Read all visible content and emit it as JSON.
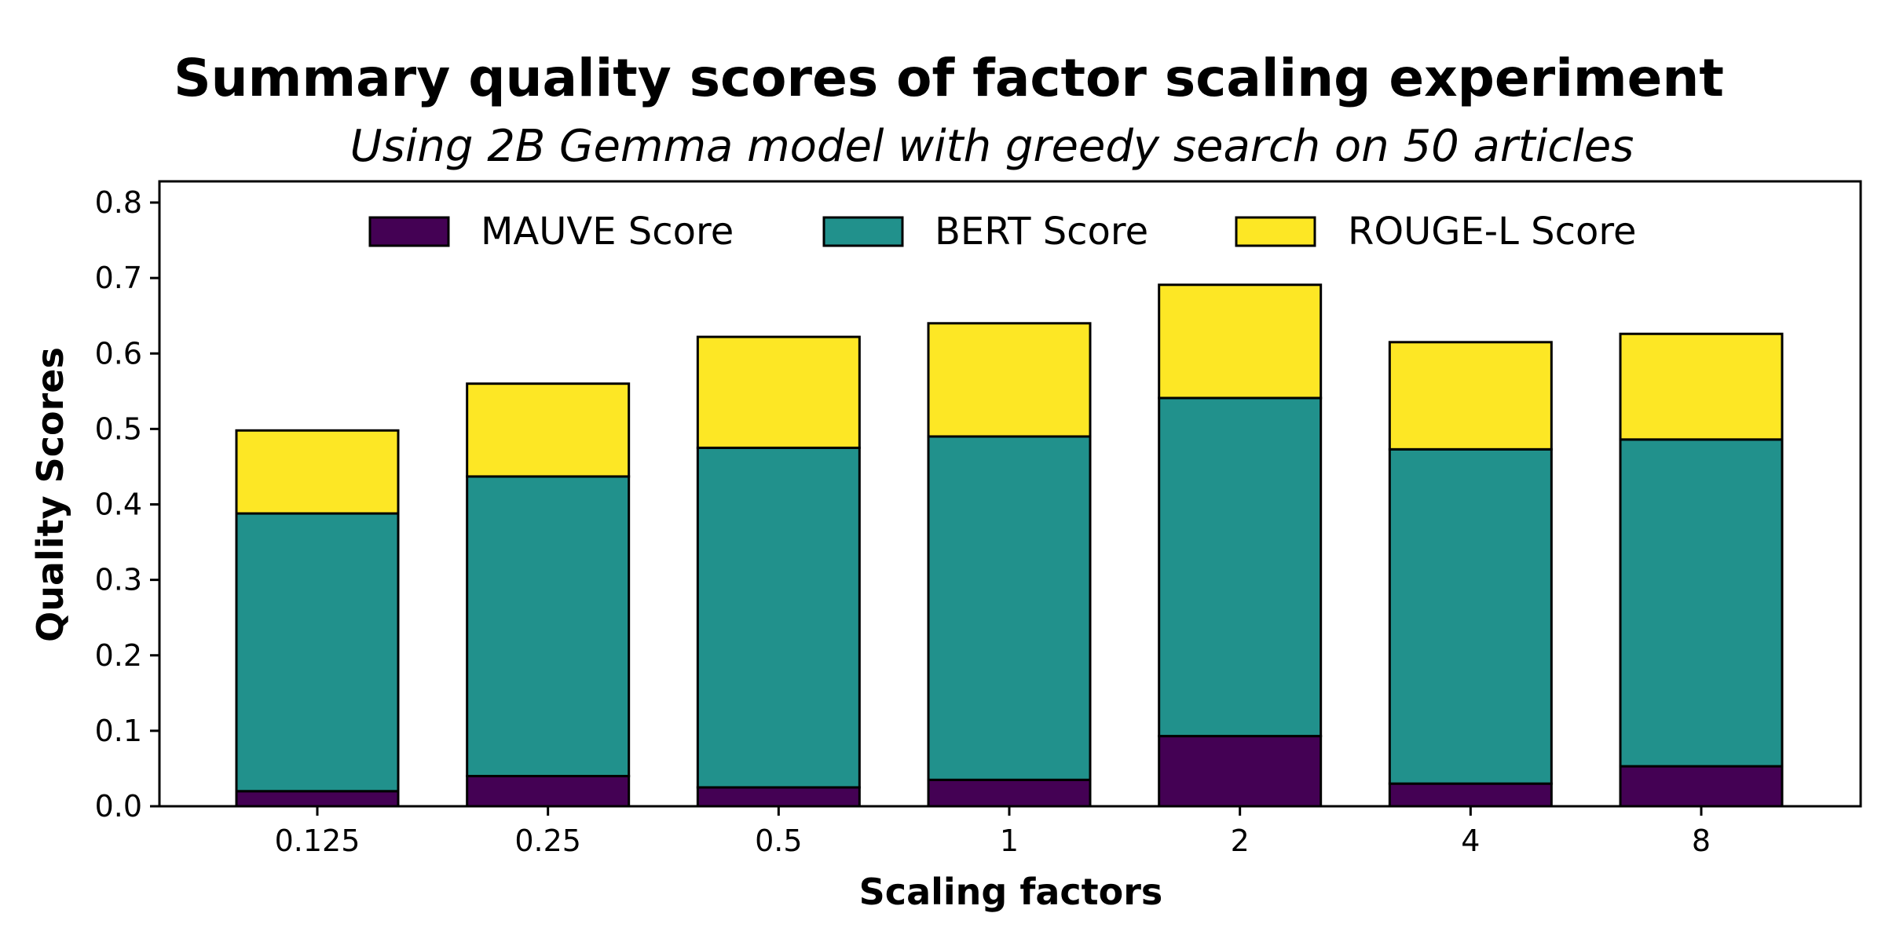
{
  "chart_data": {
    "type": "bar",
    "stacked": true,
    "title": "Summary quality scores of factor scaling experiment",
    "subtitle": "Using 2B Gemma model with greedy search on 50 articles",
    "xlabel": "Scaling factors",
    "ylabel": "Quality Scores",
    "categories": [
      "0.125",
      "0.25",
      "0.5",
      "1",
      "2",
      "4",
      "8"
    ],
    "ylim": [
      0,
      0.83
    ],
    "yticks": [
      "0.0",
      "0.1",
      "0.2",
      "0.3",
      "0.4",
      "0.5",
      "0.6",
      "0.7",
      "0.8"
    ],
    "legend_position": "upper-center",
    "grid": false,
    "series": [
      {
        "name": "MAUVE Score",
        "color": "#440154",
        "values": [
          0.02,
          0.04,
          0.025,
          0.035,
          0.093,
          0.03,
          0.053
        ]
      },
      {
        "name": "BERT Score",
        "color": "#21918c",
        "values": [
          0.368,
          0.397,
          0.45,
          0.455,
          0.448,
          0.443,
          0.433
        ]
      },
      {
        "name": "ROUGE-L Score",
        "color": "#fde725",
        "values": [
          0.11,
          0.123,
          0.147,
          0.15,
          0.15,
          0.142,
          0.14
        ]
      }
    ]
  }
}
